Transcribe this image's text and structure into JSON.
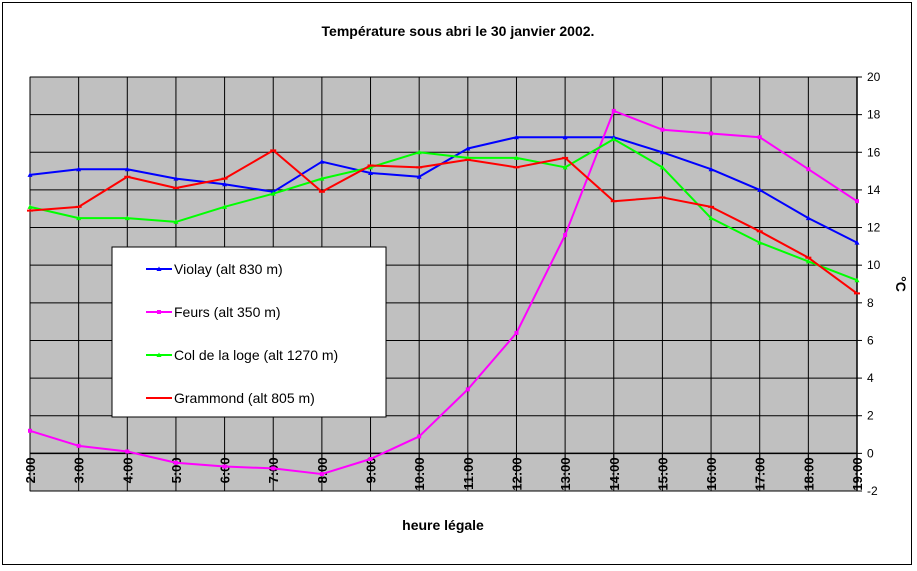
{
  "chart_data": {
    "type": "line",
    "title": "Température sous abri le 30 janvier 2002.",
    "xlabel": "heure légale",
    "ylabel": "°C",
    "ylim": [
      -2,
      20
    ],
    "yticks": [
      -2,
      0,
      2,
      4,
      6,
      8,
      10,
      12,
      14,
      16,
      18,
      20
    ],
    "grid": true,
    "legend_position": "left-middle",
    "categories": [
      "2:00",
      "3:00",
      "4:00",
      "5:00",
      "6:00",
      "7:00",
      "8:00",
      "9:00",
      "10:00",
      "11:00",
      "12:00",
      "13:00",
      "14:00",
      "15:00",
      "16:00",
      "17:00",
      "18:00",
      "19:00"
    ],
    "series": [
      {
        "name": "Violay (alt 830 m)",
        "color": "#0000ff",
        "marker": "triangle",
        "values": [
          14.8,
          15.1,
          15.1,
          14.6,
          14.3,
          13.9,
          15.5,
          14.9,
          14.7,
          16.2,
          16.8,
          16.8,
          16.8,
          16.0,
          15.1,
          14.0,
          12.5,
          11.2
        ]
      },
      {
        "name": "Feurs (alt 350 m)",
        "color": "#ff00ff",
        "marker": "square",
        "values": [
          1.2,
          0.4,
          0.1,
          -0.5,
          -0.7,
          -0.8,
          -1.1,
          -0.3,
          0.9,
          3.4,
          6.4,
          11.6,
          18.2,
          17.2,
          17.0,
          16.8,
          15.1,
          13.4
        ]
      },
      {
        "name": "Col de la loge (alt 1270 m)",
        "color": "#00ff00",
        "marker": "triangle",
        "values": [
          13.1,
          12.5,
          12.5,
          12.3,
          13.1,
          13.8,
          14.6,
          15.2,
          16.0,
          15.7,
          15.7,
          15.2,
          16.7,
          15.2,
          12.5,
          11.2,
          10.2,
          9.2
        ]
      },
      {
        "name": "Grammond (alt 805 m)",
        "color": "#ff0000",
        "marker": "dash",
        "values": [
          12.9,
          13.1,
          14.7,
          14.1,
          14.6,
          16.1,
          13.9,
          15.3,
          15.2,
          15.6,
          15.2,
          15.7,
          13.4,
          13.6,
          13.1,
          11.8,
          10.4,
          8.5
        ]
      }
    ]
  }
}
